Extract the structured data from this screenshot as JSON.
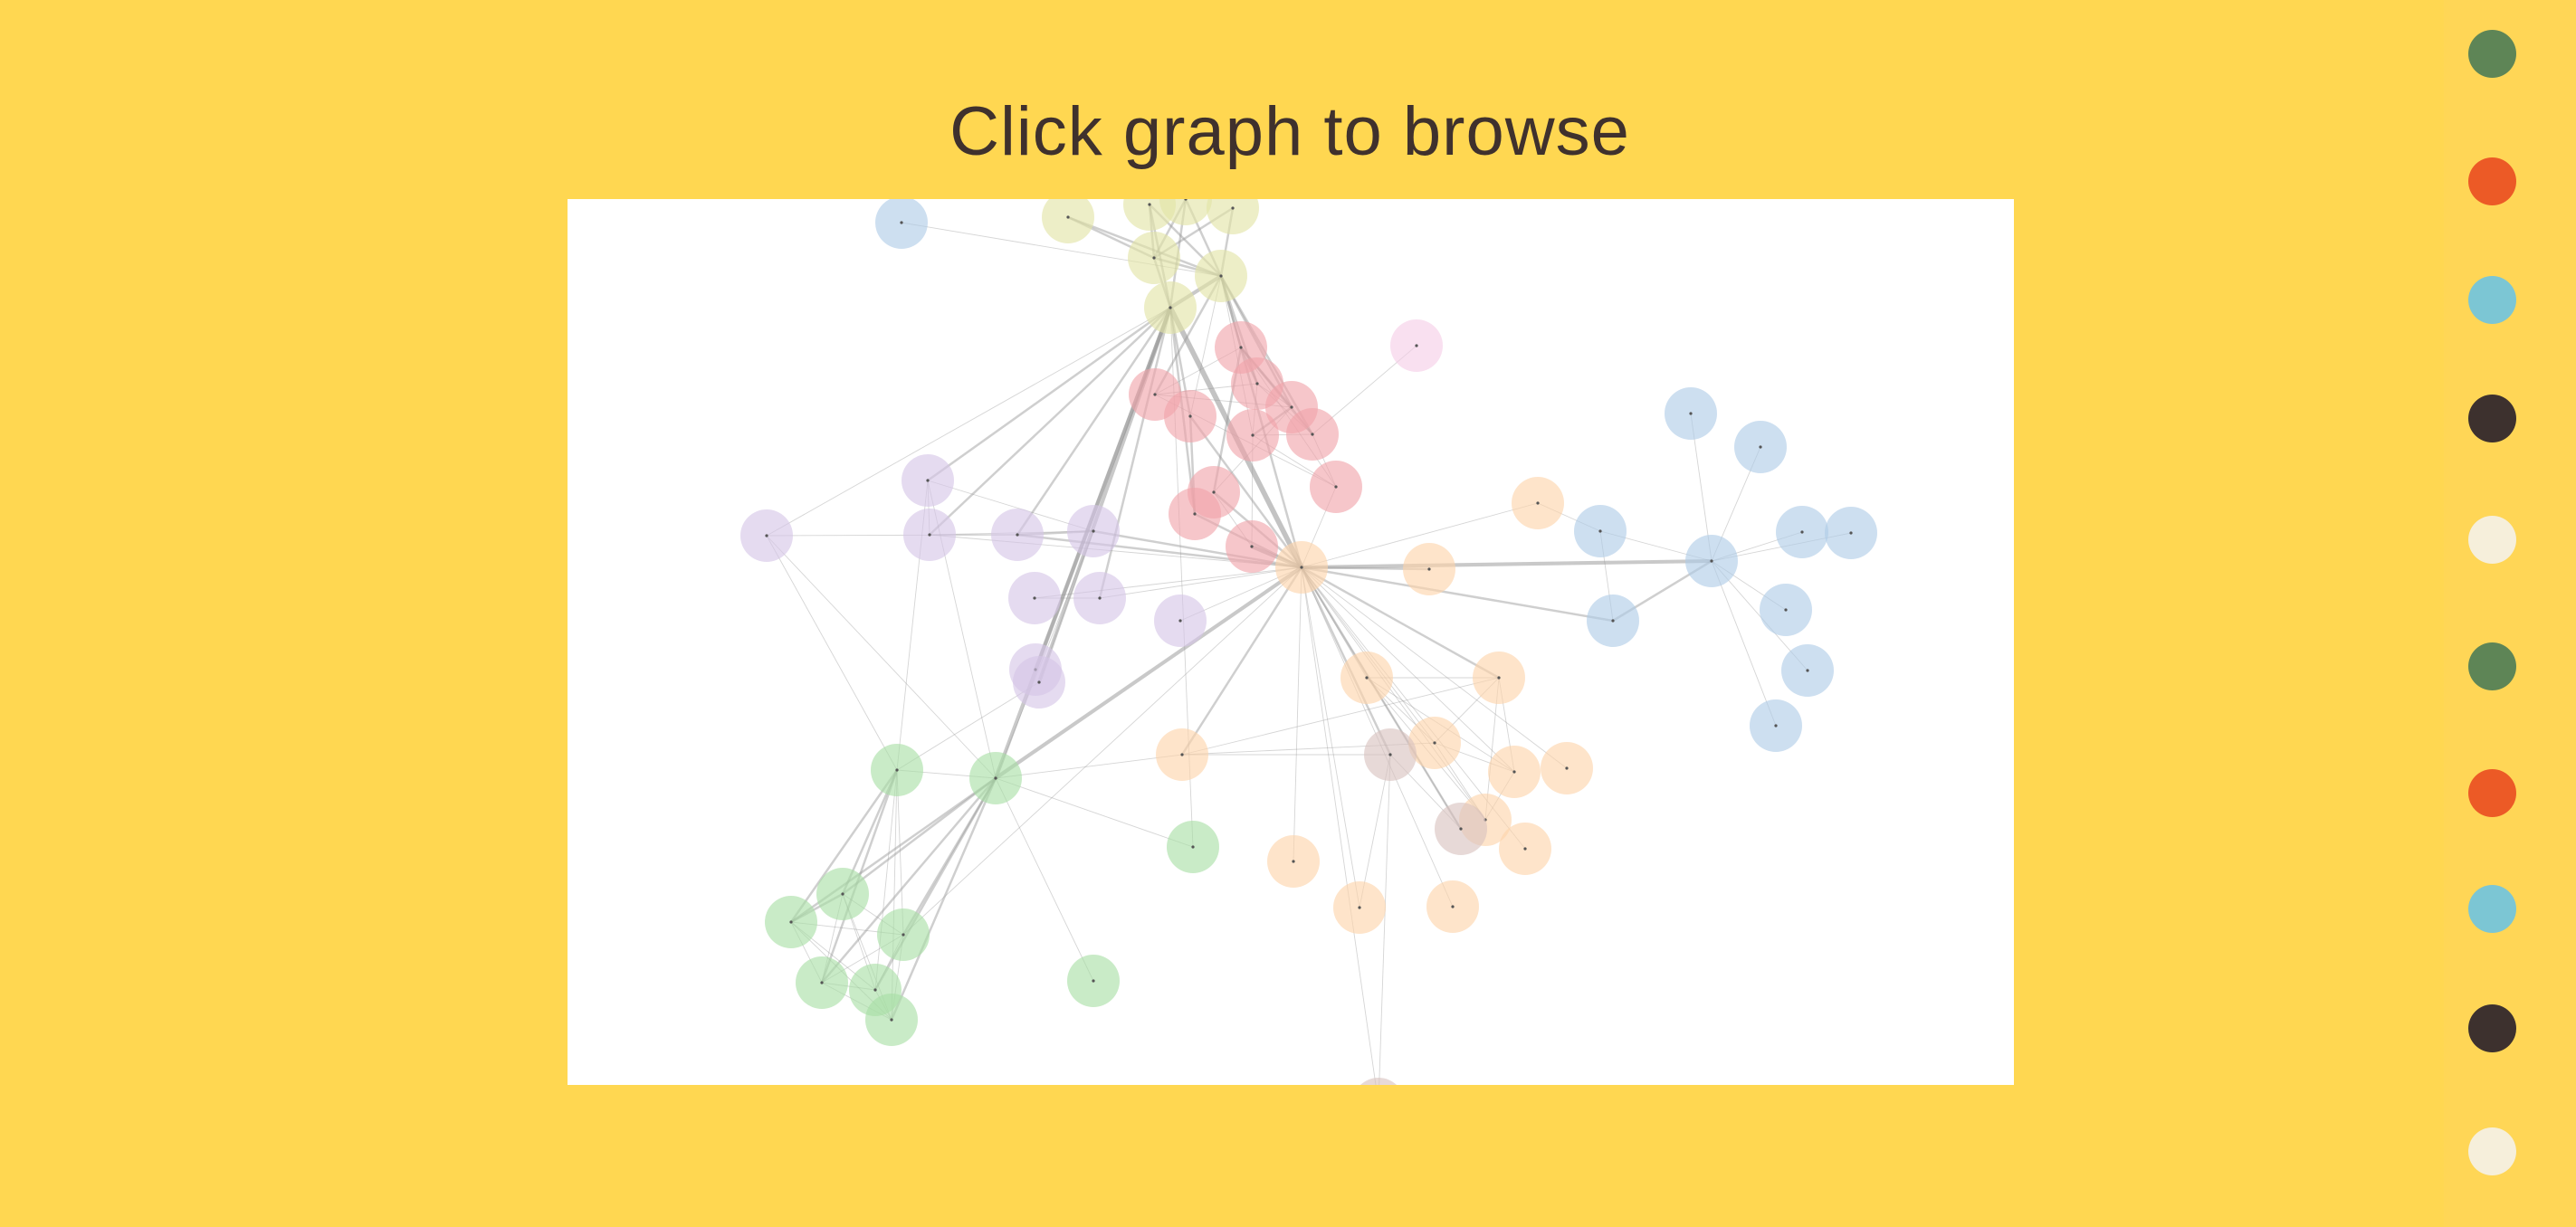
{
  "title": "Click graph to browse",
  "colors": {
    "background": "#FFD751",
    "sidebar": "#FFD656",
    "title_text": "#3F312D",
    "panel": "#FFFFFF",
    "edge": "#999999",
    "node_center": "#555555"
  },
  "swatches": [
    {
      "name": "green",
      "color": "#5E8556"
    },
    {
      "name": "orange",
      "color": "#EC5A26"
    },
    {
      "name": "cyan",
      "color": "#7CC6D4"
    },
    {
      "name": "dark-brown",
      "color": "#3D312E"
    },
    {
      "name": "cream",
      "color": "#F6EFDB"
    },
    {
      "name": "green",
      "color": "#5E8556"
    },
    {
      "name": "orange",
      "color": "#EC5A26"
    },
    {
      "name": "cyan",
      "color": "#7CC6D4"
    },
    {
      "name": "dark-brown",
      "color": "#3D312E"
    },
    {
      "name": "cream",
      "color": "#F6EFDB"
    }
  ],
  "graph": {
    "group_colors": {
      "blue": "#AECCE6",
      "yellow": "#E2E4A5",
      "red": "#F0A3AA",
      "pink": "#F6CDE6",
      "purple": "#D5C5E6",
      "orange": "#FDD3A9",
      "brown": "#D8C2BE",
      "green": "#A8DEA5"
    },
    "nodes": [
      {
        "id": 0,
        "group": "blue"
      },
      {
        "id": 1,
        "group": "yellow"
      },
      {
        "id": 2,
        "group": "yellow"
      },
      {
        "id": 3,
        "group": "yellow"
      },
      {
        "id": 4,
        "group": "yellow"
      },
      {
        "id": 5,
        "group": "yellow"
      },
      {
        "id": 6,
        "group": "yellow"
      },
      {
        "id": 7,
        "group": "yellow"
      },
      {
        "id": 8,
        "group": "red"
      },
      {
        "id": 9,
        "group": "pink"
      },
      {
        "id": 10,
        "group": "red"
      },
      {
        "id": 11,
        "group": "red"
      },
      {
        "id": 12,
        "group": "red"
      },
      {
        "id": 13,
        "group": "red"
      },
      {
        "id": 14,
        "group": "red"
      },
      {
        "id": 15,
        "group": "red"
      },
      {
        "id": 16,
        "group": "red"
      },
      {
        "id": 17,
        "group": "red"
      },
      {
        "id": 18,
        "group": "red"
      },
      {
        "id": 19,
        "group": "red"
      },
      {
        "id": 20,
        "group": "purple"
      },
      {
        "id": 21,
        "group": "purple"
      },
      {
        "id": 22,
        "group": "purple"
      },
      {
        "id": 23,
        "group": "purple"
      },
      {
        "id": 24,
        "group": "purple"
      },
      {
        "id": 25,
        "group": "purple"
      },
      {
        "id": 26,
        "group": "purple"
      },
      {
        "id": 27,
        "group": "purple"
      },
      {
        "id": 28,
        "group": "purple"
      },
      {
        "id": 29,
        "group": "purple"
      },
      {
        "id": 30,
        "group": "orange"
      },
      {
        "id": 31,
        "group": "orange"
      },
      {
        "id": 32,
        "group": "orange"
      },
      {
        "id": 33,
        "group": "blue"
      },
      {
        "id": 34,
        "group": "blue"
      },
      {
        "id": 35,
        "group": "blue"
      },
      {
        "id": 36,
        "group": "blue"
      },
      {
        "id": 37,
        "group": "blue"
      },
      {
        "id": 38,
        "group": "blue"
      },
      {
        "id": 39,
        "group": "blue"
      },
      {
        "id": 40,
        "group": "blue"
      },
      {
        "id": 41,
        "group": "blue"
      },
      {
        "id": 42,
        "group": "blue"
      },
      {
        "id": 43,
        "group": "orange"
      },
      {
        "id": 44,
        "group": "orange"
      },
      {
        "id": 45,
        "group": "orange"
      },
      {
        "id": 46,
        "group": "orange"
      },
      {
        "id": 47,
        "group": "orange"
      },
      {
        "id": 48,
        "group": "orange"
      },
      {
        "id": 49,
        "group": "orange"
      },
      {
        "id": 50,
        "group": "orange"
      },
      {
        "id": 51,
        "group": "orange"
      },
      {
        "id": 52,
        "group": "orange"
      },
      {
        "id": 53,
        "group": "orange"
      },
      {
        "id": 54,
        "group": "brown"
      },
      {
        "id": 55,
        "group": "brown"
      },
      {
        "id": 56,
        "group": "brown"
      },
      {
        "id": 57,
        "group": "green"
      },
      {
        "id": 58,
        "group": "green"
      },
      {
        "id": 59,
        "group": "green"
      },
      {
        "id": 60,
        "group": "green"
      },
      {
        "id": 61,
        "group": "green"
      },
      {
        "id": 62,
        "group": "green"
      },
      {
        "id": 63,
        "group": "green"
      },
      {
        "id": 64,
        "group": "green"
      },
      {
        "id": 65,
        "group": "green"
      },
      {
        "id": 66,
        "group": "green"
      }
    ],
    "links": [
      [
        0,
        6,
        1
      ],
      [
        1,
        6,
        2
      ],
      [
        2,
        6,
        2
      ],
      [
        3,
        6,
        2
      ],
      [
        4,
        6,
        2
      ],
      [
        5,
        6,
        2
      ],
      [
        1,
        5,
        2
      ],
      [
        2,
        5,
        2
      ],
      [
        3,
        5,
        2
      ],
      [
        4,
        5,
        2
      ],
      [
        5,
        7,
        2
      ],
      [
        6,
        7,
        3
      ],
      [
        2,
        7,
        2
      ],
      [
        3,
        7,
        2
      ],
      [
        7,
        30,
        4
      ],
      [
        7,
        29,
        3
      ],
      [
        7,
        28,
        3
      ],
      [
        7,
        20,
        1
      ],
      [
        7,
        21,
        2
      ],
      [
        7,
        22,
        2
      ],
      [
        7,
        23,
        2
      ],
      [
        7,
        26,
        2
      ],
      [
        7,
        18,
        2
      ],
      [
        7,
        19,
        2
      ],
      [
        7,
        60,
        3
      ],
      [
        7,
        58,
        1
      ],
      [
        6,
        8,
        2
      ],
      [
        6,
        11,
        2
      ],
      [
        6,
        12,
        2
      ],
      [
        6,
        13,
        2
      ],
      [
        6,
        10,
        2
      ],
      [
        6,
        14,
        1
      ],
      [
        6,
        19,
        1
      ],
      [
        6,
        30,
        2
      ],
      [
        8,
        10,
        1
      ],
      [
        8,
        11,
        2
      ],
      [
        8,
        12,
        2
      ],
      [
        8,
        13,
        2
      ],
      [
        8,
        15,
        1
      ],
      [
        8,
        16,
        2
      ],
      [
        9,
        13,
        1
      ],
      [
        10,
        11,
        1
      ],
      [
        10,
        12,
        1
      ],
      [
        10,
        15,
        1
      ],
      [
        11,
        12,
        1
      ],
      [
        11,
        13,
        1
      ],
      [
        11,
        14,
        1
      ],
      [
        12,
        14,
        2
      ],
      [
        12,
        13,
        1
      ],
      [
        13,
        14,
        1
      ],
      [
        14,
        15,
        1
      ],
      [
        13,
        15,
        1
      ],
      [
        15,
        30,
        1
      ],
      [
        16,
        30,
        2
      ],
      [
        17,
        30,
        3
      ],
      [
        18,
        30,
        2
      ],
      [
        16,
        17,
        1
      ],
      [
        12,
        16,
        1
      ],
      [
        14,
        17,
        1
      ],
      [
        19,
        30,
        2
      ],
      [
        18,
        19,
        2
      ],
      [
        20,
        23,
        1
      ],
      [
        21,
        22,
        1
      ],
      [
        22,
        23,
        1
      ],
      [
        22,
        24,
        1
      ],
      [
        21,
        24,
        1
      ],
      [
        23,
        24,
        2
      ],
      [
        24,
        30,
        2
      ],
      [
        23,
        30,
        2
      ],
      [
        22,
        30,
        1
      ],
      [
        25,
        30,
        1
      ],
      [
        26,
        30,
        1
      ],
      [
        25,
        26,
        1
      ],
      [
        27,
        30,
        1
      ],
      [
        24,
        29,
        1
      ],
      [
        30,
        31,
        2
      ],
      [
        30,
        32,
        1
      ],
      [
        32,
        33,
        1
      ],
      [
        30,
        34,
        3
      ],
      [
        33,
        34,
        1
      ],
      [
        33,
        35,
        1
      ],
      [
        34,
        35,
        2
      ],
      [
        30,
        35,
        2
      ],
      [
        34,
        36,
        1
      ],
      [
        34,
        37,
        1
      ],
      [
        34,
        38,
        1
      ],
      [
        34,
        39,
        1
      ],
      [
        34,
        40,
        1
      ],
      [
        34,
        41,
        1
      ],
      [
        34,
        42,
        1
      ],
      [
        30,
        43,
        2
      ],
      [
        30,
        44,
        1
      ],
      [
        30,
        45,
        2
      ],
      [
        30,
        46,
        1
      ],
      [
        30,
        47,
        1
      ],
      [
        30,
        48,
        1
      ],
      [
        30,
        49,
        1
      ],
      [
        30,
        50,
        1
      ],
      [
        30,
        51,
        1
      ],
      [
        30,
        52,
        1
      ],
      [
        30,
        53,
        1
      ],
      [
        30,
        54,
        2
      ],
      [
        30,
        55,
        2
      ],
      [
        30,
        56,
        1
      ],
      [
        30,
        60,
        3
      ],
      [
        30,
        62,
        1
      ],
      [
        44,
        45,
        1
      ],
      [
        44,
        46,
        1
      ],
      [
        44,
        47,
        1
      ],
      [
        44,
        48,
        1
      ],
      [
        45,
        46,
        1
      ],
      [
        45,
        47,
        1
      ],
      [
        45,
        48,
        1
      ],
      [
        46,
        47,
        1
      ],
      [
        46,
        48,
        1
      ],
      [
        47,
        48,
        1
      ],
      [
        43,
        45,
        1
      ],
      [
        43,
        46,
        1
      ],
      [
        43,
        54,
        1
      ],
      [
        54,
        55,
        1
      ],
      [
        54,
        56,
        1
      ],
      [
        54,
        53,
        1
      ],
      [
        55,
        30,
        1
      ],
      [
        57,
        59,
        2
      ],
      [
        57,
        60,
        1
      ],
      [
        57,
        61,
        2
      ],
      [
        57,
        62,
        1
      ],
      [
        57,
        63,
        2
      ],
      [
        57,
        64,
        1
      ],
      [
        57,
        65,
        1
      ],
      [
        57,
        29,
        1
      ],
      [
        59,
        61,
        2
      ],
      [
        59,
        62,
        1
      ],
      [
        59,
        63,
        1
      ],
      [
        59,
        64,
        1
      ],
      [
        59,
        65,
        1
      ],
      [
        61,
        62,
        1
      ],
      [
        61,
        63,
        1
      ],
      [
        61,
        64,
        1
      ],
      [
        61,
        65,
        1
      ],
      [
        62,
        63,
        1
      ],
      [
        62,
        64,
        1
      ],
      [
        62,
        65,
        1
      ],
      [
        63,
        64,
        1
      ],
      [
        63,
        65,
        1
      ],
      [
        64,
        65,
        1
      ],
      [
        60,
        59,
        2
      ],
      [
        60,
        61,
        2
      ],
      [
        60,
        62,
        2
      ],
      [
        60,
        63,
        2
      ],
      [
        60,
        64,
        2
      ],
      [
        60,
        65,
        2
      ],
      [
        60,
        58,
        1
      ],
      [
        60,
        66,
        1
      ],
      [
        60,
        43,
        1
      ],
      [
        60,
        24,
        1
      ],
      [
        60,
        20,
        1
      ],
      [
        60,
        21,
        1
      ],
      [
        57,
        21,
        1
      ],
      [
        57,
        20,
        1
      ]
    ]
  }
}
